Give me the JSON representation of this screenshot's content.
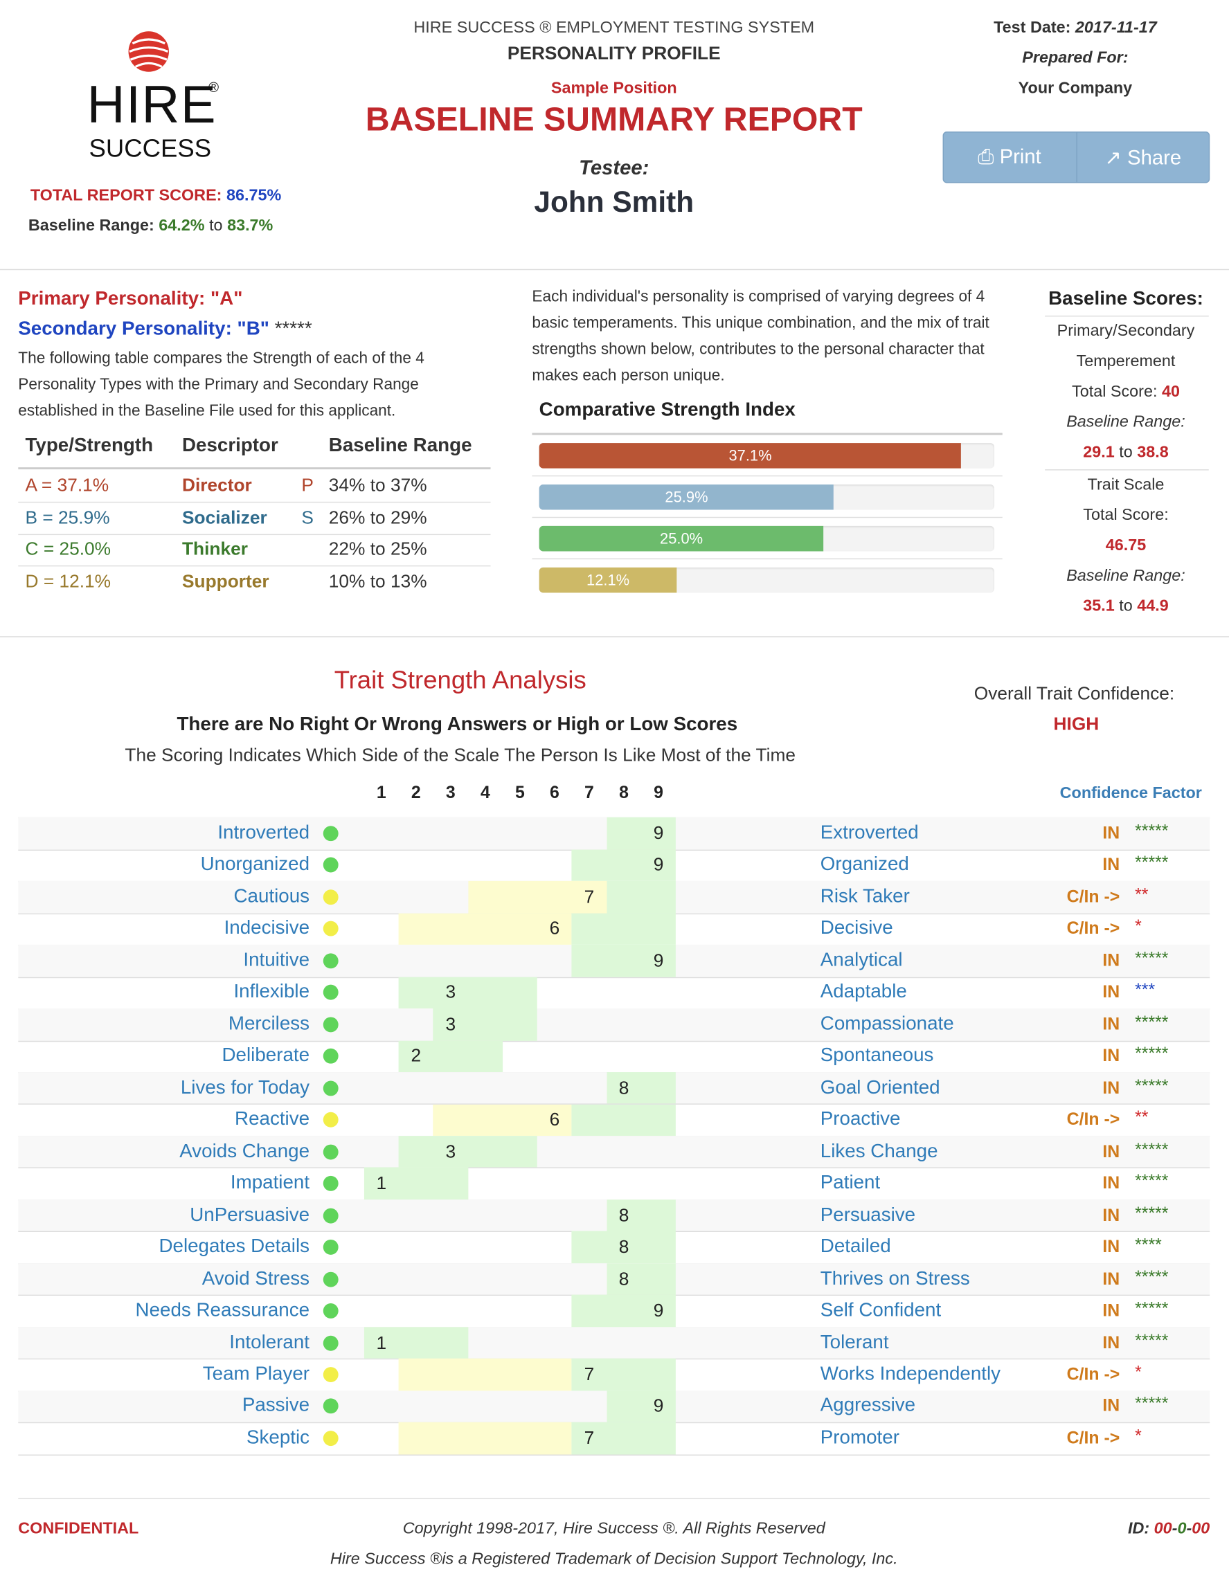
{
  "header": {
    "logo_word": "HIRE",
    "logo_reg": "®",
    "logo_sub": "SUCCESS",
    "system_title": "HIRE SUCCESS ® EMPLOYMENT TESTING SYSTEM",
    "profile": "PERSONALITY PROFILE",
    "position": "Sample Position",
    "report_title": "BASELINE SUMMARY REPORT",
    "testee_label": "Testee:",
    "testee": "John Smith",
    "test_date_label": "Test Date:",
    "test_date": "2017-11-17",
    "prepared_for_label": "Prepared For:",
    "prepared_for": "Your Company",
    "buttons": [
      "Print",
      "Share"
    ],
    "total_score_label": "TOTAL REPORT SCORE:",
    "total_score": "86.75%",
    "baseline_range_label": "Baseline Range:",
    "range_low": "64.2%",
    "range_to": "to",
    "range_high": "83.7%"
  },
  "personality": {
    "primary": "Primary Personality: \"A\"",
    "secondary": "Secondary Personality: \"B\"",
    "secondary_stars": "*****",
    "intro": "The following table compares the Strength of each of the 4 Personality Types with the Primary and Secondary Range established in the Baseline File used for this applicant.",
    "columns": [
      "Type/Strength",
      "Descriptor",
      "Baseline Range"
    ],
    "types": [
      {
        "label": "A = 37.1%",
        "descriptor": "Director",
        "flag": "P",
        "range": "34% to 37%",
        "color": "#b0452c",
        "bar_color": "#b95535"
      },
      {
        "label": "B = 25.9%",
        "descriptor": "Socializer",
        "flag": "S",
        "range": "26% to 29%",
        "color": "#2f6b8c",
        "bar_color": "#92b5cd"
      },
      {
        "label": "C = 25.0%",
        "descriptor": "Thinker",
        "range": "22% to 25%",
        "color": "#3b7a2c",
        "bar_color": "#6cbb6c"
      },
      {
        "label": "D = 12.1%",
        "descriptor": "Supporter",
        "range": "10% to 13%",
        "color": "#98792c",
        "bar_color": "#cdb967"
      }
    ]
  },
  "strength_index": {
    "description": "Each individual's personality is comprised of varying degrees of 4 basic temperaments. This unique combination, and the mix of trait strengths shown below, contributes to the personal character that makes each person unique.",
    "title": "Comparative Strength Index",
    "xlim": [
      0,
      40
    ],
    "values": [
      37.1,
      25.9,
      25.0,
      12.1
    ],
    "value_labels": [
      "37.1%",
      "25.9%",
      "25.0%",
      "12.1%"
    ]
  },
  "baseline_scores": {
    "title": "Baseline Scores:",
    "temperament_label_1": "Primary/Secondary",
    "temperament_label_2": "Temperement",
    "total_label": "Total Score:",
    "total": "40",
    "range_label": "Baseline Range:",
    "range_low": "29.1",
    "range_to": "to",
    "range_high": "38.8",
    "trait_label": "Trait Scale",
    "trait_total_label": "Total Score:",
    "trait_total": "46.75",
    "trait_range_label": "Baseline Range:",
    "trait_range_low": "35.1",
    "trait_range_to": "to",
    "trait_range_high": "44.9"
  },
  "traits": {
    "title": "Trait Strength Analysis",
    "subtitle": "There are No Right Or Wrong Answers or High or Low Scores",
    "note": "The Scoring Indicates Which Side of the Scale The Person Is Like Most of the Time",
    "confidence_label": "Overall Trait Confidence:",
    "confidence": "HIGH",
    "factor_label": "Confidence Factor",
    "scale": [
      1,
      2,
      3,
      4,
      5,
      6,
      7,
      8,
      9
    ],
    "rows": [
      {
        "left": "Introverted",
        "right": "Extroverted",
        "score": 9,
        "baseline": [
          8,
          9
        ],
        "confidence": "IN",
        "stars": "*****"
      },
      {
        "left": "Unorganized",
        "right": "Organized",
        "score": 9,
        "baseline": [
          7,
          9
        ],
        "confidence": "IN",
        "stars": "*****"
      },
      {
        "left": "Cautious",
        "right": "Risk Taker",
        "score": 7,
        "baseline": [
          8,
          9
        ],
        "caution": [
          4,
          7
        ],
        "confidence": "C/In ->",
        "stars": "**"
      },
      {
        "left": "Indecisive",
        "right": "Decisive",
        "score": 6,
        "baseline": [
          7,
          9
        ],
        "caution": [
          2,
          6
        ],
        "confidence": "C/In ->",
        "stars": "*"
      },
      {
        "left": "Intuitive",
        "right": "Analytical",
        "score": 9,
        "baseline": [
          7,
          9
        ],
        "confidence": "IN",
        "stars": "*****"
      },
      {
        "left": "Inflexible",
        "right": "Adaptable",
        "score": 3,
        "baseline": [
          2,
          5
        ],
        "confidence": "IN",
        "stars": "***"
      },
      {
        "left": "Merciless",
        "right": "Compassionate",
        "score": 3,
        "baseline": [
          3,
          5
        ],
        "confidence": "IN",
        "stars": "*****"
      },
      {
        "left": "Deliberate",
        "right": "Spontaneous",
        "score": 2,
        "baseline": [
          2,
          4
        ],
        "confidence": "IN",
        "stars": "*****"
      },
      {
        "left": "Lives for Today",
        "right": "Goal Oriented",
        "score": 8,
        "baseline": [
          8,
          9
        ],
        "confidence": "IN",
        "stars": "*****"
      },
      {
        "left": "Reactive",
        "right": "Proactive",
        "score": 6,
        "baseline": [
          7,
          9
        ],
        "caution": [
          3,
          6
        ],
        "confidence": "C/In ->",
        "stars": "**"
      },
      {
        "left": "Avoids Change",
        "right": "Likes Change",
        "score": 3,
        "baseline": [
          2,
          5
        ],
        "confidence": "IN",
        "stars": "*****"
      },
      {
        "left": "Impatient",
        "right": "Patient",
        "score": 1,
        "baseline": [
          1,
          3
        ],
        "confidence": "IN",
        "stars": "*****"
      },
      {
        "left": "UnPersuasive",
        "right": "Persuasive",
        "score": 8,
        "baseline": [
          8,
          9
        ],
        "confidence": "IN",
        "stars": "*****"
      },
      {
        "left": "Delegates Details",
        "right": "Detailed",
        "score": 8,
        "baseline": [
          7,
          9
        ],
        "confidence": "IN",
        "stars": "****"
      },
      {
        "left": "Avoid Stress",
        "right": "Thrives on Stress",
        "score": 8,
        "baseline": [
          8,
          9
        ],
        "confidence": "IN",
        "stars": "*****"
      },
      {
        "left": "Needs Reassurance",
        "right": "Self Confident",
        "score": 9,
        "baseline": [
          7,
          9
        ],
        "confidence": "IN",
        "stars": "*****"
      },
      {
        "left": "Intolerant",
        "right": "Tolerant",
        "score": 1,
        "baseline": [
          1,
          3
        ],
        "confidence": "IN",
        "stars": "*****"
      },
      {
        "left": "Team Player",
        "right": "Works Independently",
        "score": 7,
        "baseline": [
          7,
          9
        ],
        "caution": [
          2,
          6
        ],
        "confidence": "C/In ->",
        "stars": "*"
      },
      {
        "left": "Passive",
        "right": "Aggressive",
        "score": 9,
        "baseline": [
          8,
          9
        ],
        "confidence": "IN",
        "stars": "*****"
      },
      {
        "left": "Skeptic",
        "right": "Promoter",
        "score": 7,
        "baseline": [
          7,
          9
        ],
        "caution": [
          2,
          6
        ],
        "confidence": "C/In ->",
        "stars": "*"
      }
    ]
  },
  "footer": {
    "confidential": "CONFIDENTIAL",
    "copyright": "Copyright 1998-2017, Hire Success ®. All Rights Reserved",
    "trademark": "Hire Success ®is a Registered Trademark of Decision Support Technology, Inc.",
    "id_label": "ID:",
    "id_parts": [
      "00",
      "-",
      "0",
      "-",
      "00"
    ]
  }
}
